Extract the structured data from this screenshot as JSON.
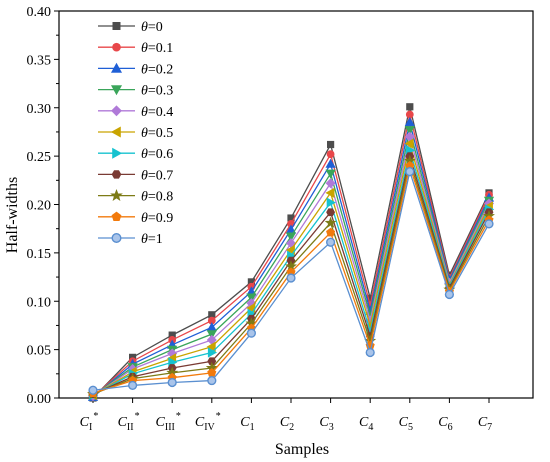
{
  "chart_data": {
    "type": "line",
    "xlabel": "Samples",
    "ylabel": "Half-widths",
    "ylim": [
      0.0,
      0.4
    ],
    "yticks": [
      "0.00",
      "0.05",
      "0.10",
      "0.15",
      "0.20",
      "0.25",
      "0.30",
      "0.35",
      "0.40"
    ],
    "categories": [
      "C_I*",
      "C_II*",
      "C_III*",
      "C_IV*",
      "C_1",
      "C_2",
      "C_3",
      "C_4",
      "C_5",
      "C_6",
      "C_7"
    ],
    "category_labels": [
      {
        "main": "C",
        "sub": "I",
        "sup": "*"
      },
      {
        "main": "C",
        "sub": "II",
        "sup": "*"
      },
      {
        "main": "C",
        "sub": "III",
        "sup": "*"
      },
      {
        "main": "C",
        "sub": "IV",
        "sup": "*"
      },
      {
        "main": "C",
        "sub": "1",
        "sup": ""
      },
      {
        "main": "C",
        "sub": "2",
        "sup": ""
      },
      {
        "main": "C",
        "sub": "3",
        "sup": ""
      },
      {
        "main": "C",
        "sub": "4",
        "sup": ""
      },
      {
        "main": "C",
        "sub": "5",
        "sup": ""
      },
      {
        "main": "C",
        "sub": "6",
        "sup": ""
      },
      {
        "main": "C",
        "sub": "7",
        "sup": ""
      }
    ],
    "legend_position": "top-left",
    "grid": false,
    "series": [
      {
        "name": "θ=0",
        "color": "#4d4d4d",
        "marker": "square",
        "values": [
          0.0,
          0.042,
          0.065,
          0.086,
          0.12,
          0.186,
          0.262,
          0.103,
          0.301,
          0.127,
          0.212
        ]
      },
      {
        "name": "θ=0.1",
        "color": "#e8474a",
        "marker": "circle",
        "values": [
          0.001,
          0.038,
          0.06,
          0.08,
          0.115,
          0.18,
          0.252,
          0.096,
          0.293,
          0.124,
          0.21
        ]
      },
      {
        "name": "θ=0.2",
        "color": "#1f5fd6",
        "marker": "triangle-up",
        "values": [
          0.001,
          0.035,
          0.055,
          0.073,
          0.11,
          0.174,
          0.242,
          0.09,
          0.285,
          0.122,
          0.207
        ]
      },
      {
        "name": "θ=0.3",
        "color": "#3aa55a",
        "marker": "triangle-down",
        "values": [
          0.002,
          0.032,
          0.05,
          0.066,
          0.104,
          0.167,
          0.232,
          0.085,
          0.277,
          0.12,
          0.204
        ]
      },
      {
        "name": "θ=0.4",
        "color": "#b07ad8",
        "marker": "diamond",
        "values": [
          0.002,
          0.03,
          0.046,
          0.06,
          0.098,
          0.16,
          0.222,
          0.08,
          0.27,
          0.119,
          0.201
        ]
      },
      {
        "name": "θ=0.5",
        "color": "#c9a400",
        "marker": "triangle-left",
        "values": [
          0.003,
          0.027,
          0.041,
          0.053,
          0.093,
          0.153,
          0.212,
          0.075,
          0.263,
          0.117,
          0.198
        ]
      },
      {
        "name": "θ=0.6",
        "color": "#16c2cf",
        "marker": "triangle-right",
        "values": [
          0.003,
          0.025,
          0.037,
          0.047,
          0.087,
          0.147,
          0.202,
          0.069,
          0.256,
          0.116,
          0.195
        ]
      },
      {
        "name": "θ=0.7",
        "color": "#7a3b34",
        "marker": "hexagon",
        "values": [
          0.004,
          0.022,
          0.031,
          0.038,
          0.082,
          0.142,
          0.192,
          0.064,
          0.25,
          0.114,
          0.192
        ]
      },
      {
        "name": "θ=0.8",
        "color": "#7d7b16",
        "marker": "star",
        "values": [
          0.004,
          0.02,
          0.026,
          0.031,
          0.077,
          0.136,
          0.181,
          0.059,
          0.245,
          0.112,
          0.188
        ]
      },
      {
        "name": "θ=0.9",
        "color": "#f27a0c",
        "marker": "pentagon",
        "values": [
          0.005,
          0.018,
          0.021,
          0.026,
          0.072,
          0.13,
          0.171,
          0.054,
          0.24,
          0.11,
          0.184
        ]
      },
      {
        "name": "θ=1",
        "color": "#5a8fd0",
        "marker": "circle-ring",
        "values": [
          0.008,
          0.013,
          0.016,
          0.018,
          0.067,
          0.124,
          0.161,
          0.047,
          0.234,
          0.107,
          0.18
        ]
      }
    ]
  }
}
